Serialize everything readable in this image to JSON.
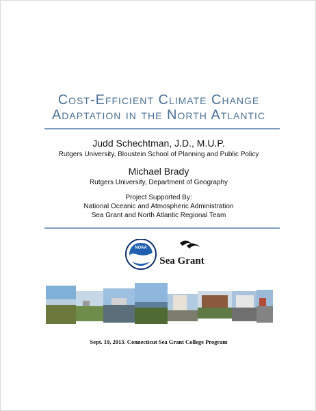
{
  "title": {
    "line1": "Cost-Efficient Climate Change",
    "line2": "Adaptation in the North Atlantic"
  },
  "authors": [
    {
      "name": "Judd Schechtman, J.D., M.U.P.",
      "affiliation": "Rutgers University, Bloustein School of Planning and Public Policy"
    },
    {
      "name": "Michael Brady",
      "affiliation": "Rutgers University, Department of Geography"
    }
  ],
  "support": {
    "heading": "Project Supported By:",
    "line1": "National Oceanic and Atmospheric Administration",
    "line2": "Sea Grant and North Atlantic Regional Team"
  },
  "logos": {
    "noaa_text": "NOAA",
    "seagrant_text": "Sea Grant"
  },
  "colors": {
    "title": "#4a6f94",
    "rule": "#7f9cbf",
    "noaa_blue": "#1f5fae",
    "noaa_navy": "#0d2d6b"
  },
  "footer": "Sept. 19, 2013.  Connecticut Sea Grant College Program"
}
